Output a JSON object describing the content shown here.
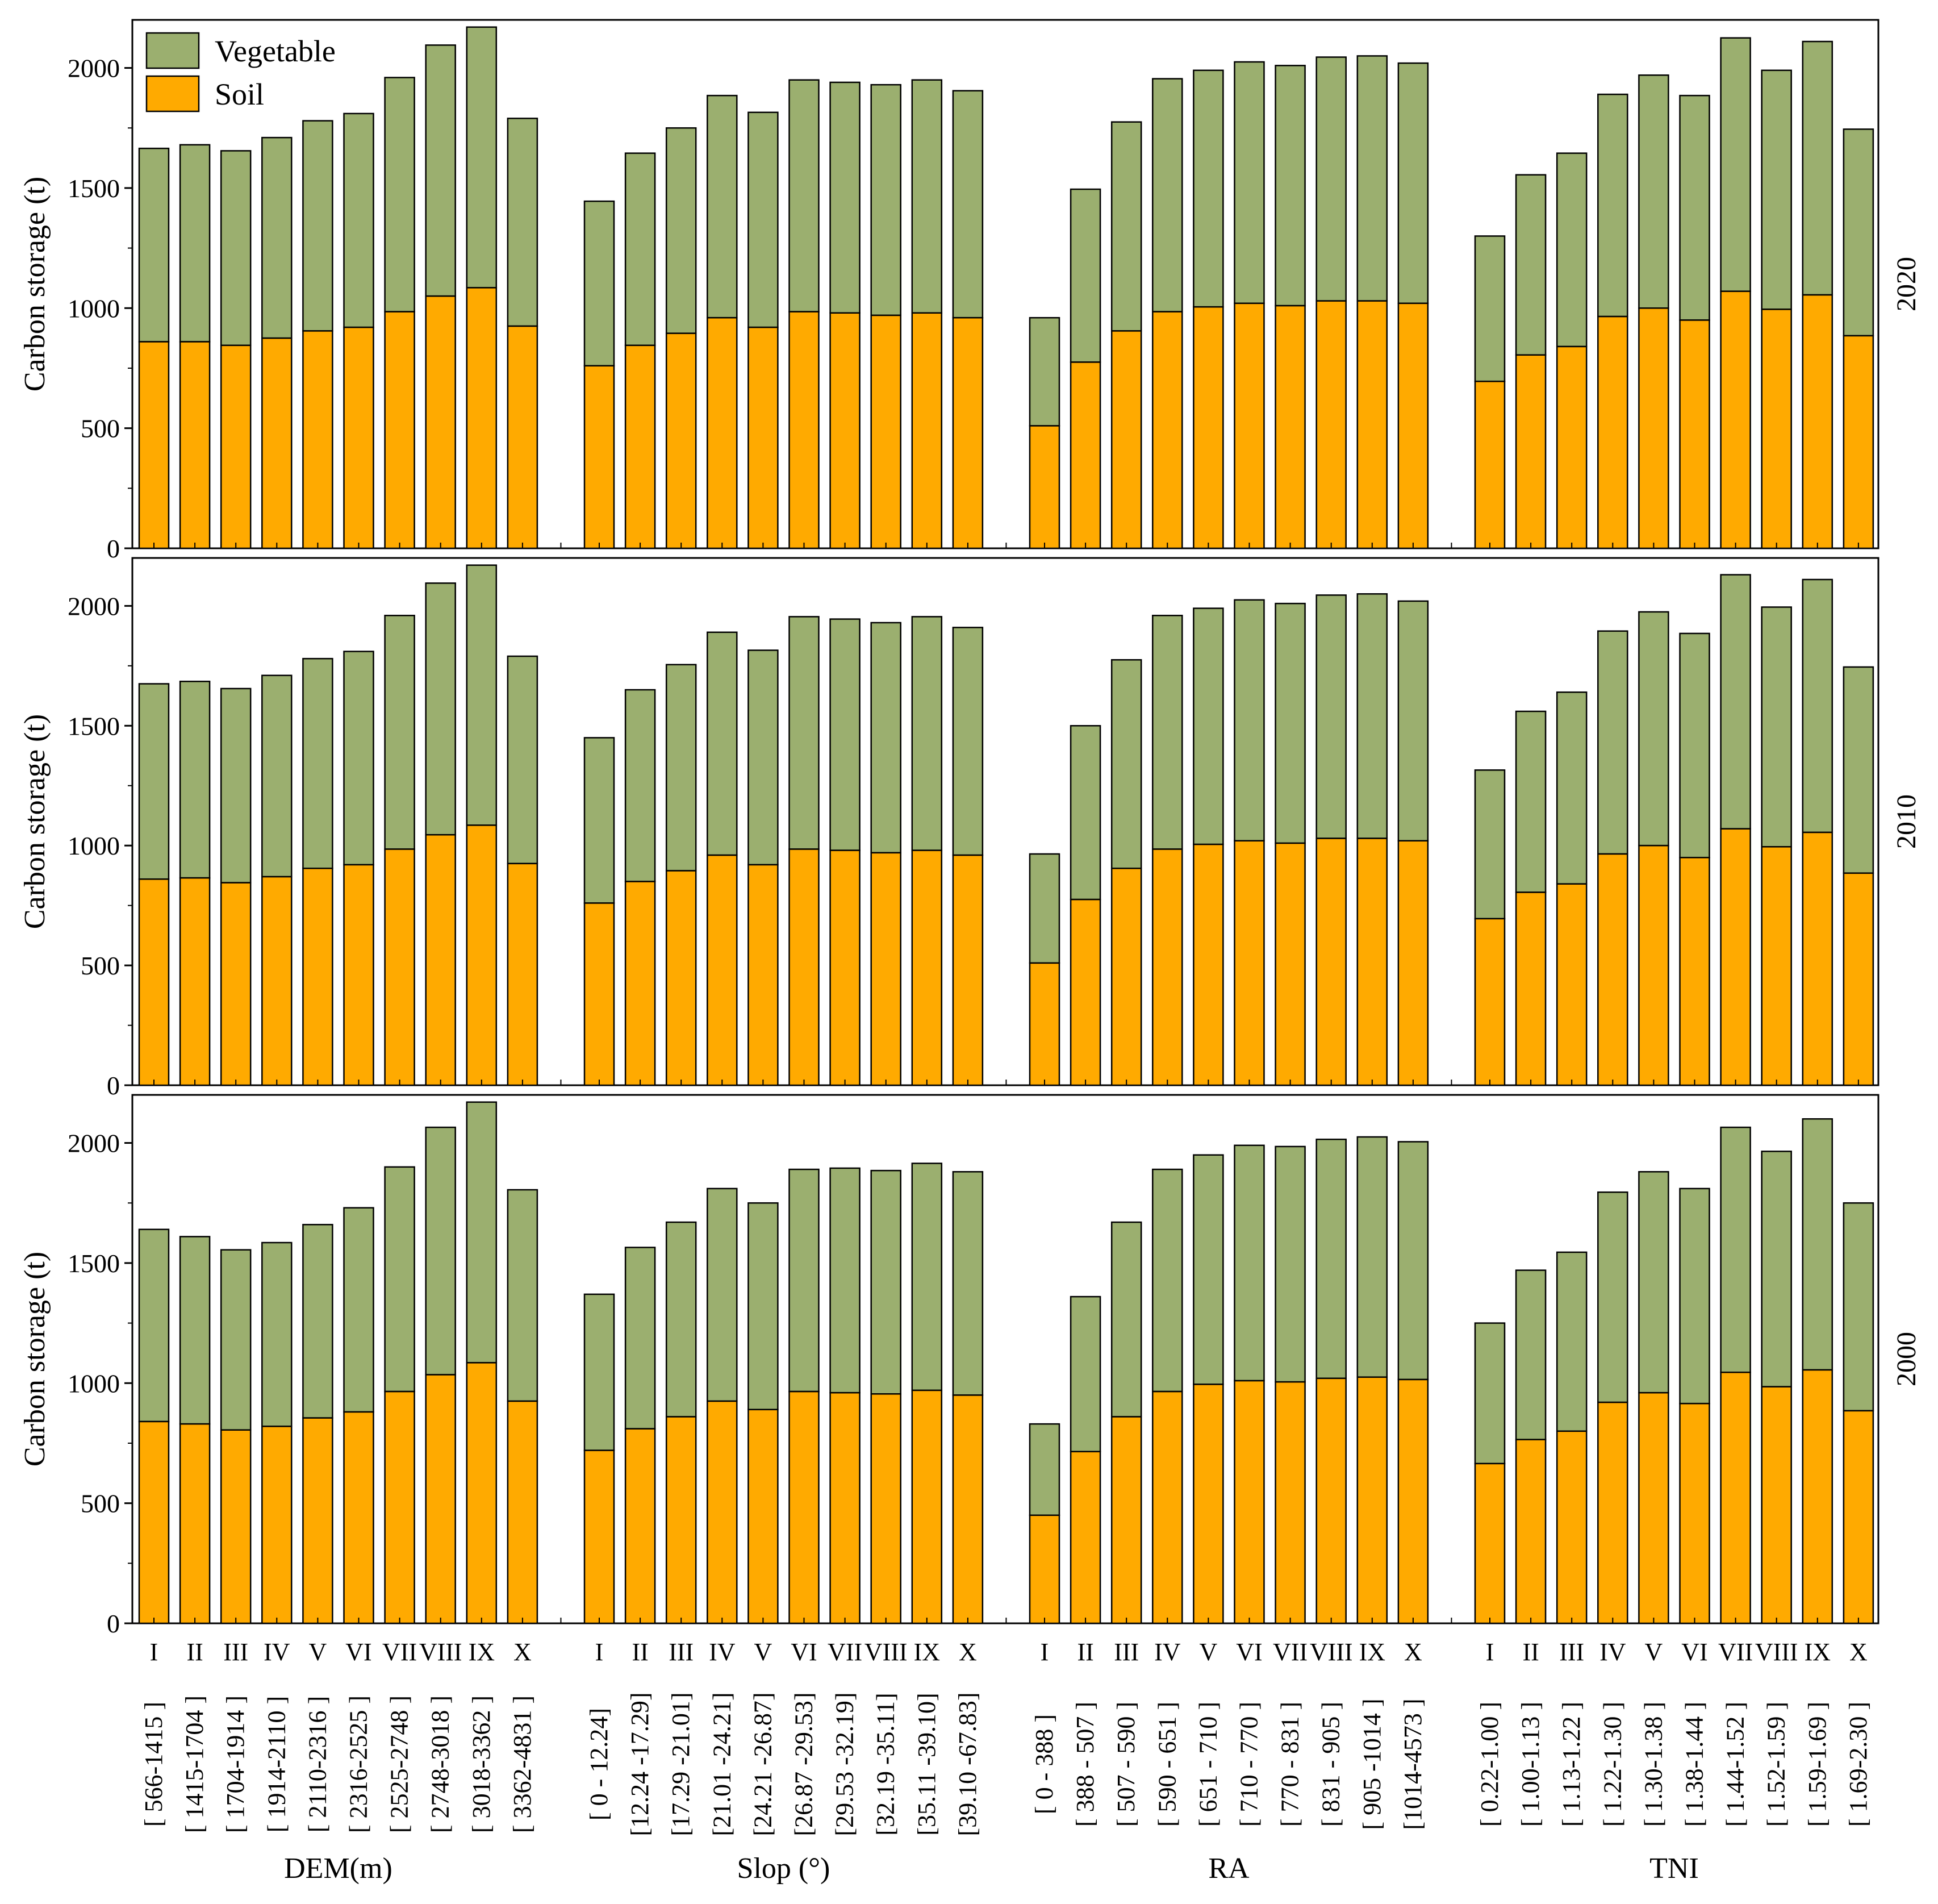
{
  "colors": {
    "vegetable": "#9BAF6F",
    "soil": "#FFAA00",
    "outline": "#000000",
    "background": "#FFFFFF"
  },
  "legend": {
    "vegetable_label": "Vegetable",
    "soil_label": "Soil"
  },
  "ylabel": "Carbon storage (t)",
  "ylim": [
    0,
    2200
  ],
  "yticks": [
    0,
    500,
    1000,
    1500,
    2000
  ],
  "group_labels": [
    "DEM(m)",
    "Slop  (°)",
    "RA",
    "TNI"
  ],
  "roman_labels": [
    "I",
    "II",
    "III",
    "IV",
    "V",
    "VI",
    "VII",
    "VIII",
    "IX",
    "X"
  ],
  "range_labels": [
    [
      "[  566-1415  ]",
      "[ 1415-1704 ]",
      "[ 1704-1914 ]",
      "[ 1914-2110 ]",
      "[ 2110-2316 ]",
      "[ 2316-2525 ]",
      "[ 2525-2748 ]",
      "[ 2748-3018 ]",
      "[ 3018-3362 ]",
      "[ 3362-4831 ]"
    ],
    [
      "[    0    - 12.24]",
      "[12.24 -17.29]",
      "[17.29 -21.01]",
      "[21.01 -24.21]",
      "[24.21 -26.87]",
      "[26.87 -29.53]",
      "[29.53 -32.19]",
      "[32.19 -35.11]",
      "[35.11 -39.10]",
      "[39.10 -67.83]"
    ],
    [
      "[    0   -  388  ]",
      "[  388  - 507  ]",
      "[  507  - 590  ]",
      "[  590  - 651  ]",
      "[  651  - 710  ]",
      "[  710  - 770  ]",
      "[  770  - 831  ]",
      "[  831  - 905  ]",
      "[  905  -1014  ]",
      "[1014-4573  ]"
    ],
    [
      "[  0.22-1.00  ]",
      "[  1.00-1.13  ]",
      "[  1.13-1.22  ]",
      "[  1.22-1.30  ]",
      "[  1.30-1.38  ]",
      "[  1.38-1.44  ]",
      "[  1.44-1.52  ]",
      "[  1.52-1.59  ]",
      "[  1.59-1.69  ]",
      "[  1.69-2.30  ]"
    ]
  ],
  "chart_data": [
    {
      "type": "bar",
      "stacked": true,
      "year": "2020",
      "ylabel": "Carbon storage (t)",
      "ylim": [
        0,
        2200
      ],
      "groups": [
        {
          "name": "DEM(m)",
          "soil": [
            860,
            860,
            845,
            875,
            905,
            920,
            985,
            1050,
            1085,
            925
          ],
          "total": [
            1665,
            1680,
            1655,
            1710,
            1780,
            1810,
            1960,
            2095,
            2170,
            1790
          ]
        },
        {
          "name": "Slop (°)",
          "soil": [
            760,
            845,
            895,
            960,
            920,
            985,
            980,
            970,
            980,
            960
          ],
          "total": [
            1445,
            1645,
            1750,
            1885,
            1815,
            1950,
            1940,
            1930,
            1950,
            1905
          ]
        },
        {
          "name": "RA",
          "soil": [
            510,
            775,
            905,
            985,
            1005,
            1020,
            1010,
            1030,
            1030,
            1020
          ],
          "total": [
            960,
            1495,
            1775,
            1955,
            1990,
            2025,
            2010,
            2045,
            2050,
            2020
          ]
        },
        {
          "name": "TNI",
          "soil": [
            695,
            805,
            840,
            965,
            1000,
            950,
            1070,
            995,
            1055,
            885
          ],
          "total": [
            1300,
            1555,
            1645,
            1890,
            1970,
            1885,
            2125,
            1990,
            2110,
            1745
          ]
        }
      ]
    },
    {
      "type": "bar",
      "stacked": true,
      "year": "2010",
      "ylabel": "Carbon storage (t)",
      "ylim": [
        0,
        2200
      ],
      "groups": [
        {
          "name": "DEM(m)",
          "soil": [
            860,
            865,
            845,
            870,
            905,
            920,
            985,
            1045,
            1085,
            925
          ],
          "total": [
            1675,
            1685,
            1655,
            1710,
            1780,
            1810,
            1960,
            2095,
            2170,
            1790
          ]
        },
        {
          "name": "Slop (°)",
          "soil": [
            760,
            850,
            895,
            960,
            920,
            985,
            980,
            970,
            980,
            960
          ],
          "total": [
            1450,
            1650,
            1755,
            1890,
            1815,
            1955,
            1945,
            1930,
            1955,
            1910
          ]
        },
        {
          "name": "RA",
          "soil": [
            510,
            775,
            905,
            985,
            1005,
            1020,
            1010,
            1030,
            1030,
            1020
          ],
          "total": [
            965,
            1500,
            1775,
            1960,
            1990,
            2025,
            2010,
            2045,
            2050,
            2020
          ]
        },
        {
          "name": "TNI",
          "soil": [
            695,
            805,
            840,
            965,
            1000,
            950,
            1070,
            995,
            1055,
            885
          ],
          "total": [
            1315,
            1560,
            1640,
            1895,
            1975,
            1885,
            2130,
            1995,
            2110,
            1745
          ]
        }
      ]
    },
    {
      "type": "bar",
      "stacked": true,
      "year": "2000",
      "ylabel": "Carbon storage (t)",
      "ylim": [
        0,
        2200
      ],
      "groups": [
        {
          "name": "DEM(m)",
          "soil": [
            840,
            830,
            805,
            820,
            855,
            880,
            965,
            1035,
            1085,
            925
          ],
          "total": [
            1640,
            1610,
            1555,
            1585,
            1660,
            1730,
            1900,
            2065,
            2170,
            1805
          ]
        },
        {
          "name": "Slop (°)",
          "soil": [
            720,
            810,
            860,
            925,
            890,
            965,
            960,
            955,
            970,
            950
          ],
          "total": [
            1370,
            1565,
            1670,
            1810,
            1750,
            1890,
            1895,
            1885,
            1915,
            1880
          ]
        },
        {
          "name": "RA",
          "soil": [
            450,
            715,
            860,
            965,
            995,
            1010,
            1005,
            1020,
            1025,
            1015
          ],
          "total": [
            830,
            1360,
            1670,
            1890,
            1950,
            1990,
            1985,
            2015,
            2025,
            2005
          ]
        },
        {
          "name": "TNI",
          "soil": [
            665,
            765,
            800,
            920,
            960,
            915,
            1045,
            985,
            1055,
            885
          ],
          "total": [
            1250,
            1470,
            1545,
            1795,
            1880,
            1810,
            2065,
            1965,
            2100,
            1750
          ]
        }
      ]
    }
  ]
}
